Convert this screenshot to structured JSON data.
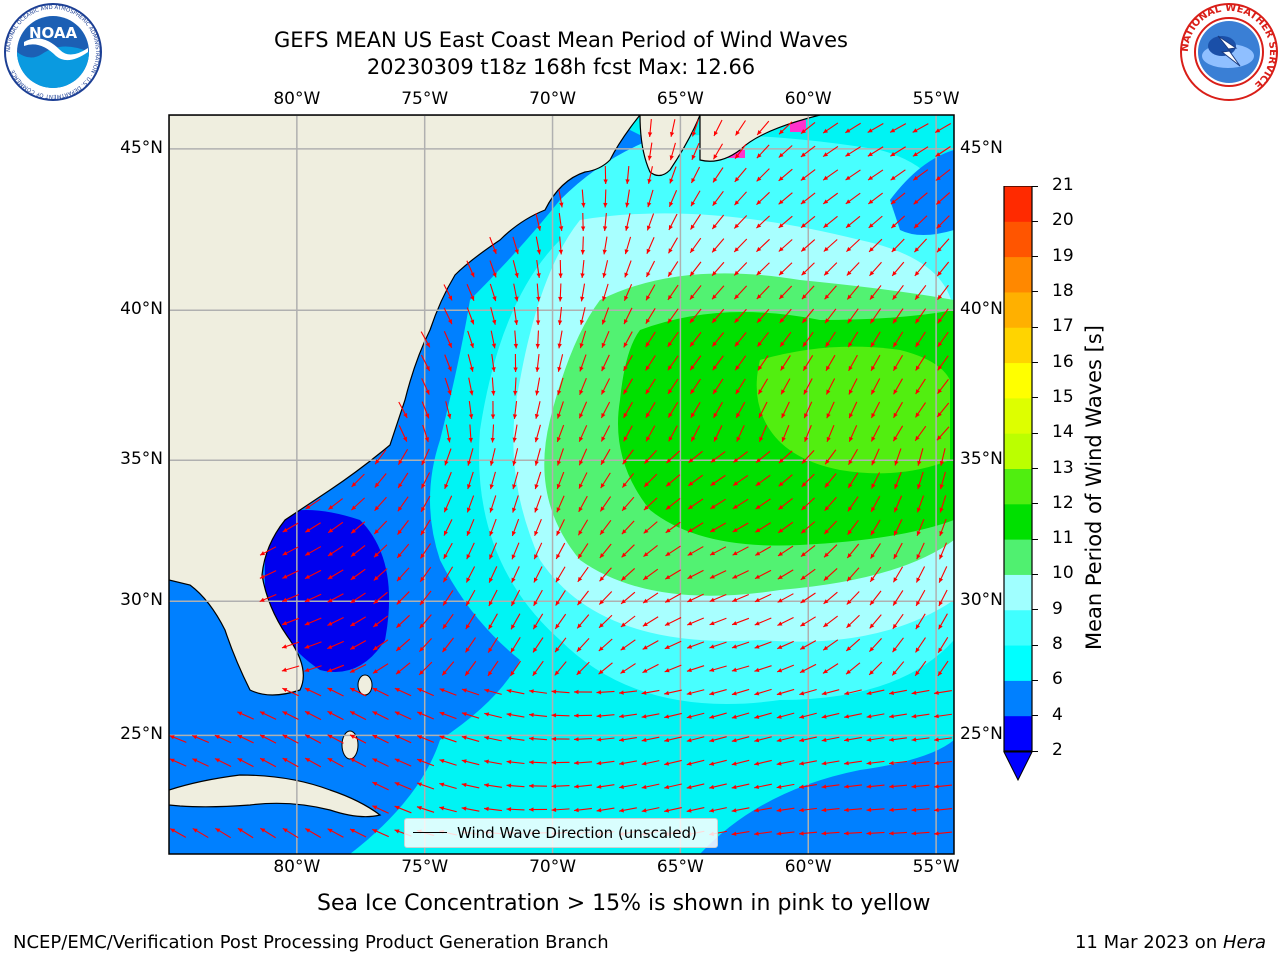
{
  "title": {
    "line1": "GEFS MEAN US East Coast Mean Period of Wind Waves",
    "line2": "20230309 t18z 168h fcst   Max: 12.66"
  },
  "logos": {
    "left": {
      "text": "NOAA",
      "ring": "NATIONAL OCEANIC AND ATMOSPHERIC ADMINISTRATION · U.S. DEPARTMENT OF COMMERCE"
    },
    "right": {
      "ring": "NATIONAL WEATHER SERVICE"
    }
  },
  "map": {
    "lon_ticks": [
      "80°W",
      "75°W",
      "70°W",
      "65°W",
      "60°W",
      "55°W"
    ],
    "lat_ticks": [
      "45°N",
      "40°N",
      "35°N",
      "30°N",
      "25°N"
    ],
    "lon_values": [
      -80,
      -75,
      -70,
      -65,
      -60,
      -55
    ],
    "lat_values": [
      45,
      40,
      35,
      30,
      25
    ],
    "extent": {
      "lon": [
        -85,
        -54.3
      ],
      "lat": [
        20.4,
        46
      ]
    },
    "colors": {
      "land": "#efeedf",
      "border": "#000000",
      "grid": "#b0b0b0",
      "arrow": "#ff0000",
      "coast": "#000000"
    }
  },
  "legend": {
    "label": "Wind Wave Direction (unscaled)"
  },
  "colorbar": {
    "label": "Mean Period of Wind Waves [s]",
    "ticks": [
      "2",
      "4",
      "6",
      "8",
      "9",
      "10",
      "11",
      "12",
      "13",
      "14",
      "15",
      "16",
      "17",
      "18",
      "19",
      "20",
      "21"
    ],
    "colors": [
      "#0000ff",
      "#0080ff",
      "#00ffff",
      "#40ffff",
      "#a0ffff",
      "#50f070",
      "#00e000",
      "#50ee10",
      "#bbff00",
      "#ddff00",
      "#ffff00",
      "#ffd400",
      "#ffb000",
      "#ff8800",
      "#ff5500",
      "#ff2a00",
      "#ff0000"
    ],
    "under_color": "#0000ff"
  },
  "note": "Sea Ice Concentration > 15% is shown in pink to yellow",
  "footer": {
    "left": "NCEP/EMC/Verification Post Processing Product Generation Branch",
    "date": "11 Mar 2023 on ",
    "machine": "Hera"
  }
}
